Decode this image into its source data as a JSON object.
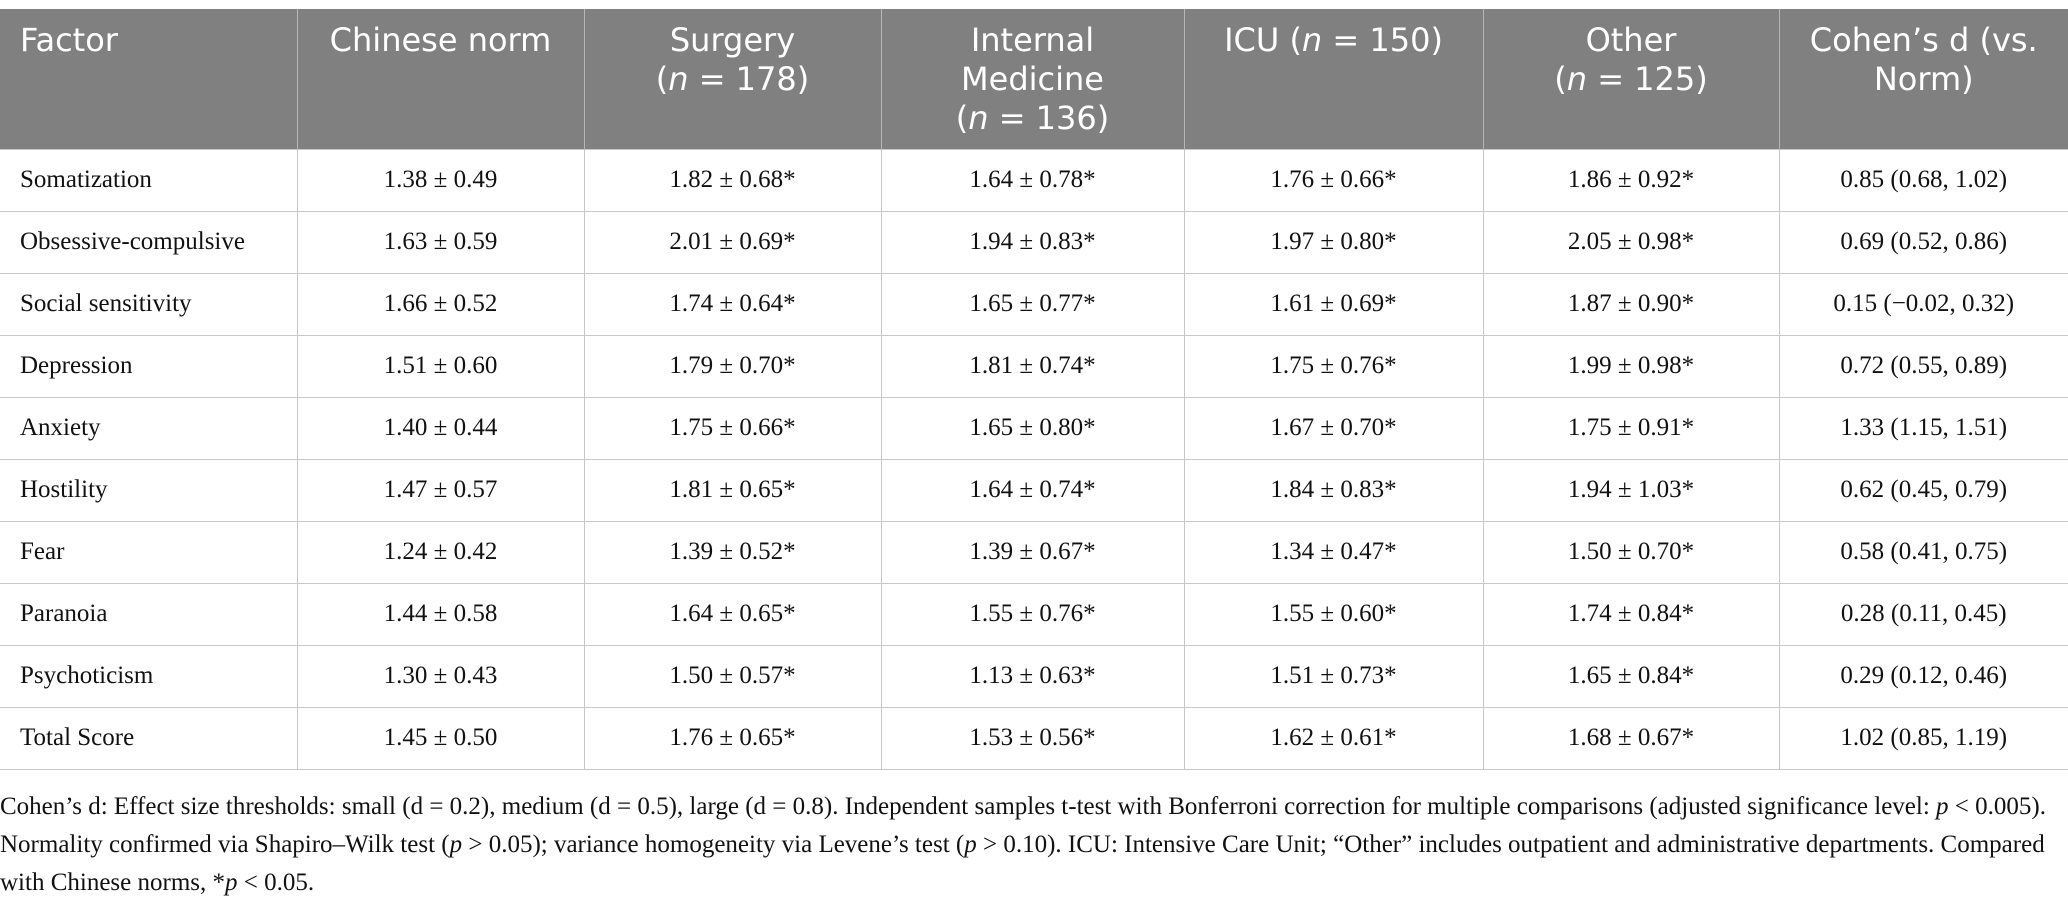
{
  "table": {
    "header": [
      [
        [
          "Factor"
        ]
      ],
      [
        [
          "Chinese norm"
        ]
      ],
      [
        [
          "Surgery"
        ],
        [
          "(",
          {
            "text": "n",
            "italic": true
          },
          " = 178)"
        ]
      ],
      [
        [
          "Internal"
        ],
        [
          "Medicine"
        ],
        [
          "(",
          {
            "text": "n",
            "italic": true
          },
          " = 136)"
        ]
      ],
      [
        [
          "ICU (",
          {
            "text": "n",
            "italic": true
          },
          " = 150)"
        ]
      ],
      [
        [
          "Other"
        ],
        [
          "(",
          {
            "text": "n",
            "italic": true
          },
          " = 125)"
        ]
      ],
      [
        [
          "Cohen’s d (vs."
        ],
        [
          "Norm)"
        ]
      ]
    ],
    "rows": [
      [
        "Somatization",
        "1.38 ± 0.49",
        "1.82 ± 0.68*",
        "1.64 ± 0.78*",
        "1.76 ± 0.66*",
        "1.86 ± 0.92*",
        "0.85 (0.68, 1.02)"
      ],
      [
        "Obsessive-compulsive",
        "1.63 ± 0.59",
        "2.01 ± 0.69*",
        "1.94 ± 0.83*",
        "1.97 ± 0.80*",
        "2.05 ± 0.98*",
        "0.69 (0.52, 0.86)"
      ],
      [
        "Social sensitivity",
        "1.66 ± 0.52",
        "1.74 ± 0.64*",
        "1.65 ± 0.77*",
        "1.61 ± 0.69*",
        "1.87 ± 0.90*",
        "0.15 (−0.02, 0.32)"
      ],
      [
        "Depression",
        "1.51 ± 0.60",
        "1.79 ± 0.70*",
        "1.81 ± 0.74*",
        "1.75 ± 0.76*",
        "1.99 ± 0.98*",
        "0.72 (0.55, 0.89)"
      ],
      [
        "Anxiety",
        "1.40 ± 0.44",
        "1.75 ± 0.66*",
        "1.65 ± 0.80*",
        "1.67 ± 0.70*",
        "1.75 ± 0.91*",
        "1.33 (1.15, 1.51)"
      ],
      [
        "Hostility",
        "1.47 ± 0.57",
        "1.81 ± 0.65*",
        "1.64 ± 0.74*",
        "1.84 ± 0.83*",
        "1.94 ± 1.03*",
        "0.62 (0.45, 0.79)"
      ],
      [
        "Fear",
        "1.24 ± 0.42",
        "1.39 ± 0.52*",
        "1.39 ± 0.67*",
        "1.34 ± 0.47*",
        "1.50 ± 0.70*",
        "0.58 (0.41, 0.75)"
      ],
      [
        "Paranoia",
        "1.44 ± 0.58",
        "1.64 ± 0.65*",
        "1.55 ± 0.76*",
        "1.55 ± 0.60*",
        "1.74 ± 0.84*",
        "0.28 (0.11, 0.45)"
      ],
      [
        "Psychoticism",
        "1.30 ± 0.43",
        "1.50 ± 0.57*",
        "1.13 ± 0.63*",
        "1.51 ± 0.73*",
        "1.65 ± 0.84*",
        "0.29 (0.12, 0.46)"
      ],
      [
        "Total Score",
        "1.45 ± 0.50",
        "1.76 ± 0.65*",
        "1.53 ± 0.56*",
        "1.62 ± 0.61*",
        "1.68 ± 0.67*",
        "1.02 (0.85, 1.19)"
      ]
    ]
  },
  "footnote": [
    "Cohen’s d: Effect size thresholds: small (d = 0.2), medium (d = 0.5), large (d = 0.8). Independent samples t-test with Bonferroni correction for multiple comparisons (adjusted significance level: ",
    {
      "text": "p",
      "italic": true
    },
    " < 0.005). Normality confirmed via Shapiro–Wilk test (",
    {
      "text": "p",
      "italic": true
    },
    " > 0.05); variance homogeneity via Levene’s test (",
    {
      "text": "p",
      "italic": true
    },
    " > 0.10). ICU: Intensive Care Unit; “Other” includes outpatient and administrative departments. Compared with Chinese norms, *",
    {
      "text": "p",
      "italic": true
    },
    " < 0.05."
  ]
}
